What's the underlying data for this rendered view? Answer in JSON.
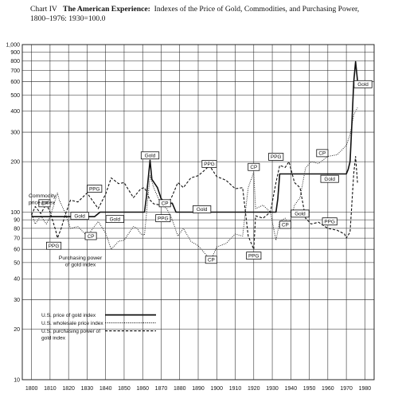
{
  "header": {
    "chart_no": "Chart IV",
    "title_bold": "The American Experience:",
    "title_rest": "Indexes of the Price of Gold, Commodities, and Purchasing Power, 1800–1976: 1930=100.0"
  },
  "chart_data": {
    "type": "line",
    "title": "Chart IV The American Experience: Indexes of the Price of Gold, Commodities, and Purchasing Power, 1800–1976: 1930=100.0",
    "xlabel": "",
    "ylabel": "",
    "x_ticks": [
      "1800",
      "1810",
      "1820",
      "1830",
      "1840",
      "1850",
      "1860",
      "1870",
      "1880",
      "1890",
      "1900",
      "1910",
      "1920",
      "1930",
      "1940",
      "1950",
      "1960",
      "1970",
      "1980"
    ],
    "y_ticks": [
      "10",
      "20",
      "30",
      "40",
      "50",
      "60",
      "70",
      "80",
      "90",
      "100",
      "200",
      "300",
      "400",
      "500",
      "600",
      "700",
      "800",
      "900",
      "1,000"
    ],
    "y_tick_values": [
      10,
      20,
      30,
      40,
      50,
      60,
      70,
      80,
      90,
      100,
      200,
      300,
      400,
      500,
      600,
      700,
      800,
      900,
      1000
    ],
    "xlim": [
      1795,
      1985
    ],
    "ylim": [
      10,
      1000
    ],
    "y_scale": "log",
    "grid": true,
    "series": [
      {
        "name": "U.S. price of gold index",
        "style": "solid",
        "points": [
          [
            1800,
            94
          ],
          [
            1834,
            94
          ],
          [
            1837,
            100
          ],
          [
            1861,
            100
          ],
          [
            1862,
            123
          ],
          [
            1864,
            204
          ],
          [
            1865,
            157
          ],
          [
            1868,
            140
          ],
          [
            1870,
            120
          ],
          [
            1873,
            113
          ],
          [
            1876,
            113
          ],
          [
            1878,
            100
          ],
          [
            1932,
            100
          ],
          [
            1933,
            120
          ],
          [
            1934,
            169
          ],
          [
            1970,
            169
          ],
          [
            1971,
            180
          ],
          [
            1972,
            200
          ],
          [
            1973,
            340
          ],
          [
            1974,
            600
          ],
          [
            1975,
            790
          ],
          [
            1976,
            610
          ]
        ]
      },
      {
        "name": "U.S. wholesale price index",
        "style": "dotted",
        "points": [
          [
            1800,
            98
          ],
          [
            1802,
            85
          ],
          [
            1805,
            95
          ],
          [
            1808,
            85
          ],
          [
            1810,
            93
          ],
          [
            1813,
            120
          ],
          [
            1814,
            130
          ],
          [
            1815,
            118
          ],
          [
            1818,
            100
          ],
          [
            1821,
            80
          ],
          [
            1825,
            82
          ],
          [
            1830,
            72
          ],
          [
            1836,
            88
          ],
          [
            1840,
            75
          ],
          [
            1843,
            60
          ],
          [
            1847,
            67
          ],
          [
            1850,
            68
          ],
          [
            1855,
            82
          ],
          [
            1857,
            80
          ],
          [
            1859,
            74
          ],
          [
            1861,
            73
          ],
          [
            1864,
            165
          ],
          [
            1866,
            140
          ],
          [
            1870,
            110
          ],
          [
            1873,
            105
          ],
          [
            1876,
            90
          ],
          [
            1879,
            72
          ],
          [
            1882,
            80
          ],
          [
            1886,
            67
          ],
          [
            1890,
            63
          ],
          [
            1894,
            56
          ],
          [
            1897,
            52
          ],
          [
            1900,
            62
          ],
          [
            1905,
            65
          ],
          [
            1910,
            74
          ],
          [
            1914,
            72
          ],
          [
            1917,
            140
          ],
          [
            1920,
            173
          ],
          [
            1921,
            105
          ],
          [
            1925,
            110
          ],
          [
            1929,
            100
          ],
          [
            1932,
            68
          ],
          [
            1934,
            88
          ],
          [
            1937,
            92
          ],
          [
            1939,
            82
          ],
          [
            1942,
            110
          ],
          [
            1945,
            122
          ],
          [
            1948,
            184
          ],
          [
            1951,
            200
          ],
          [
            1955,
            195
          ],
          [
            1960,
            215
          ],
          [
            1965,
            220
          ],
          [
            1970,
            250
          ],
          [
            1972,
            290
          ],
          [
            1974,
            380
          ],
          [
            1976,
            420
          ]
        ]
      },
      {
        "name": "U.S. purchasing power of gold index",
        "style": "dashed",
        "points": [
          [
            1800,
            96
          ],
          [
            1802,
            108
          ],
          [
            1805,
            98
          ],
          [
            1808,
            112
          ],
          [
            1810,
            100
          ],
          [
            1813,
            78
          ],
          [
            1814,
            70
          ],
          [
            1816,
            80
          ],
          [
            1818,
            95
          ],
          [
            1821,
            118
          ],
          [
            1825,
            115
          ],
          [
            1830,
            130
          ],
          [
            1836,
            105
          ],
          [
            1840,
            128
          ],
          [
            1843,
            160
          ],
          [
            1847,
            148
          ],
          [
            1850,
            150
          ],
          [
            1855,
            122
          ],
          [
            1859,
            138
          ],
          [
            1861,
            140
          ],
          [
            1864,
            118
          ],
          [
            1866,
            112
          ],
          [
            1870,
            110
          ],
          [
            1873,
            108
          ],
          [
            1876,
            125
          ],
          [
            1879,
            150
          ],
          [
            1882,
            140
          ],
          [
            1886,
            160
          ],
          [
            1890,
            165
          ],
          [
            1894,
            180
          ],
          [
            1896,
            190
          ],
          [
            1900,
            163
          ],
          [
            1905,
            155
          ],
          [
            1910,
            138
          ],
          [
            1914,
            140
          ],
          [
            1917,
            72
          ],
          [
            1920,
            60
          ],
          [
            1921,
            95
          ],
          [
            1925,
            92
          ],
          [
            1929,
            100
          ],
          [
            1932,
            150
          ],
          [
            1934,
            190
          ],
          [
            1937,
            185
          ],
          [
            1939,
            200
          ],
          [
            1942,
            150
          ],
          [
            1945,
            140
          ],
          [
            1948,
            92
          ],
          [
            1951,
            85
          ],
          [
            1955,
            87
          ],
          [
            1960,
            80
          ],
          [
            1965,
            78
          ],
          [
            1969,
            74
          ],
          [
            1970,
            70
          ],
          [
            1972,
            76
          ],
          [
            1974,
            170
          ],
          [
            1975,
            215
          ],
          [
            1976,
            150
          ]
        ]
      }
    ],
    "annotations": [
      {
        "text": "CP",
        "x": 1807,
        "y": 113
      },
      {
        "text": "Gold",
        "x": 1826,
        "y": 95
      },
      {
        "text": "PPG",
        "x": 1834,
        "y": 138
      },
      {
        "text": "CP",
        "x": 1832,
        "y": 72
      },
      {
        "text": "Gold",
        "x": 1845,
        "y": 91
      },
      {
        "text": "PPG",
        "x": 1812,
        "y": 63
      },
      {
        "text": "Gold",
        "x": 1864,
        "y": 218
      },
      {
        "text": "CP",
        "x": 1872,
        "y": 113
      },
      {
        "text": "PPG",
        "x": 1871,
        "y": 92
      },
      {
        "text": "Gold",
        "x": 1892,
        "y": 104
      },
      {
        "text": "PPG",
        "x": 1896,
        "y": 194
      },
      {
        "text": "CP",
        "x": 1897,
        "y": 52
      },
      {
        "text": "CP",
        "x": 1920,
        "y": 186
      },
      {
        "text": "PPG",
        "x": 1920,
        "y": 55
      },
      {
        "text": "PPG",
        "x": 1932,
        "y": 214
      },
      {
        "text": "CP",
        "x": 1937,
        "y": 84
      },
      {
        "text": "Gold",
        "x": 1945,
        "y": 98
      },
      {
        "text": "CP",
        "x": 1957,
        "y": 225
      },
      {
        "text": "Gold",
        "x": 1961,
        "y": 158
      },
      {
        "text": "PPG",
        "x": 1961,
        "y": 88
      },
      {
        "text": "Gold",
        "x": 1979,
        "y": 580
      }
    ],
    "side_labels": {
      "commodity": [
        "Commodity",
        "price index"
      ],
      "ppg": [
        "Purchasing power",
        "of gold index"
      ]
    },
    "legend": {
      "placement": "bottom-left",
      "items": [
        {
          "lines": [
            "U.S. price of gold index"
          ],
          "style": "solid"
        },
        {
          "lines": [
            "U.S. wholesale price index"
          ],
          "style": "dotted"
        },
        {
          "lines": [
            "U.S. purchasing power of",
            "gold index"
          ],
          "style": "dashed"
        }
      ]
    }
  }
}
